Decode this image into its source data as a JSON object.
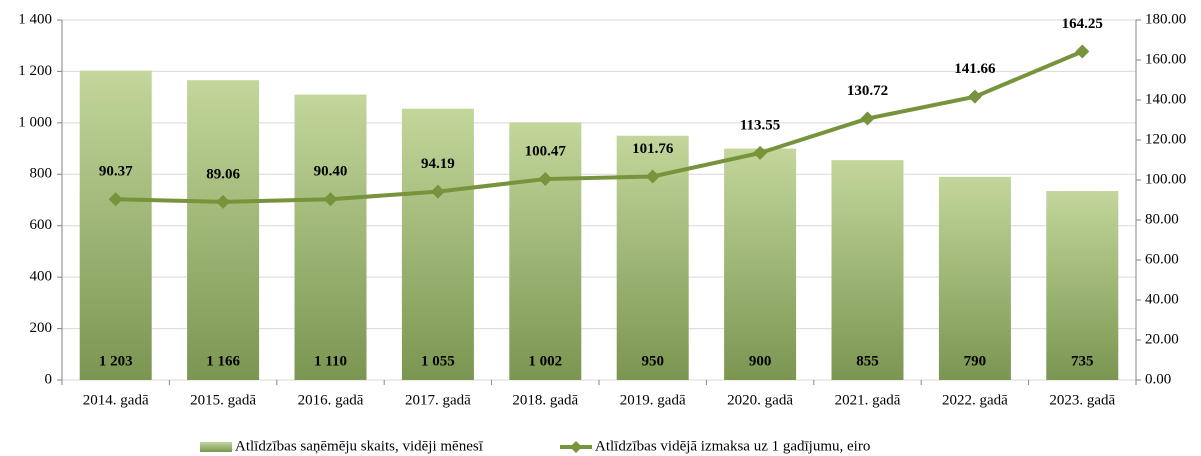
{
  "chart_data": {
    "type": "combo",
    "categories": [
      "2014. gadā",
      "2015. gadā",
      "2016. gadā",
      "2017. gadā",
      "2018. gadā",
      "2019. gadā",
      "2020. gadā",
      "2021. gadā",
      "2022. gadā",
      "2023. gadā"
    ],
    "series": [
      {
        "name": "Atlīdzības saņēmēju skaits, vidēji mēnesī",
        "type": "bar",
        "color": "#c3d69b",
        "values": [
          1203,
          1166,
          1110,
          1055,
          1002,
          950,
          900,
          855,
          790,
          735
        ],
        "value_labels": [
          "1 203",
          "1 166",
          "1 110",
          "1 055",
          "1 002",
          "950",
          "900",
          "855",
          "790",
          "735"
        ]
      },
      {
        "name": "Atlīdzības vidējā izmaksa uz 1 gadījumu, eiro",
        "type": "line",
        "axis": "y2",
        "color": "#77933c",
        "values": [
          90.37,
          89.06,
          90.4,
          94.19,
          100.47,
          101.76,
          113.55,
          130.72,
          141.66,
          164.25
        ],
        "value_labels": [
          "90.37",
          "89.06",
          "90.40",
          "94.19",
          "100.47",
          "101.76",
          "113.55",
          "130.72",
          "141.66",
          "164.25"
        ]
      }
    ],
    "ylim": [
      0,
      1400
    ],
    "yticks": [
      0,
      200,
      400,
      600,
      800,
      {
        "value": 1000,
        "label": "1 000"
      },
      {
        "value": 1200,
        "label": "1 200"
      },
      {
        "value": 1400,
        "label": "1 400"
      }
    ],
    "y2lim": [
      0,
      180
    ],
    "y2ticks": [
      {
        "value": 0,
        "label": "0.00"
      },
      {
        "value": 20,
        "label": "20.00"
      },
      {
        "value": 40,
        "label": "40.00"
      },
      {
        "value": 60,
        "label": "60.00"
      },
      {
        "value": 80,
        "label": "80.00"
      },
      {
        "value": 100,
        "label": "100.00"
      },
      {
        "value": 120,
        "label": "120.00"
      },
      {
        "value": 140,
        "label": "140.00"
      },
      {
        "value": 160,
        "label": "160.00"
      },
      {
        "value": 180,
        "label": "180.00"
      }
    ],
    "grid": true,
    "legend": "bottom"
  }
}
